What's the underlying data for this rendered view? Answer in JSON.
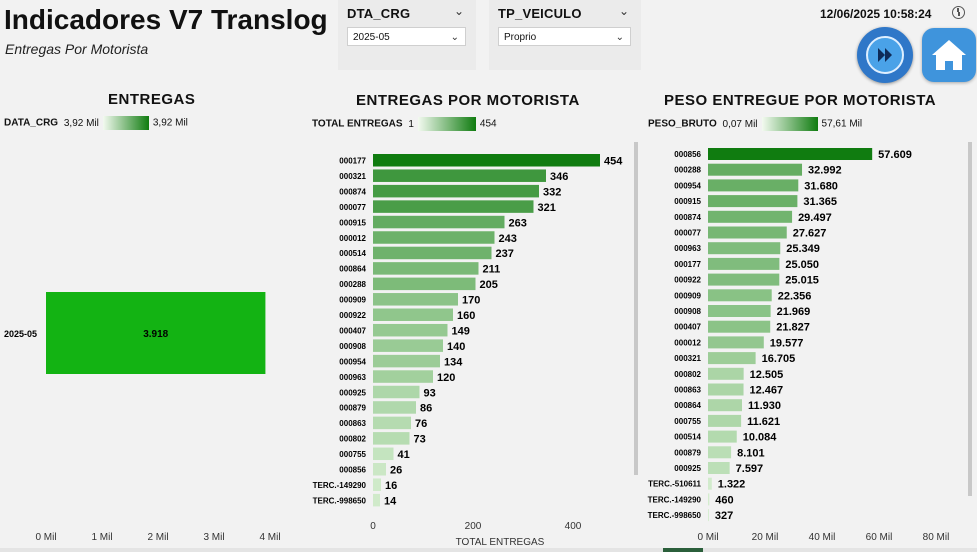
{
  "header": {
    "title": "Indicadores V7 Translog",
    "subtitle": "Entregas Por Motorista",
    "datetime": "12/06/2025 10:58:24"
  },
  "slicers": [
    {
      "label": "DTA_CRG",
      "value": "2025-05"
    },
    {
      "label": "TP_VEICULO",
      "value": "Proprio"
    }
  ],
  "icons": {
    "next": "fast-forward-icon",
    "home": "home-icon",
    "clock": "clock-icon"
  },
  "colors": {
    "dark_green": "#107c10",
    "light_green": "#c8e6c0",
    "bright_green": "#13b313"
  },
  "panels": {
    "entregas": {
      "title": "ENTREGAS",
      "legend": {
        "field": "DATA_CRG",
        "min": "3,92 Mil",
        "max": "3,92 Mil"
      }
    },
    "motorista": {
      "title": "ENTREGAS POR MOTORISTA",
      "legend": {
        "field": "TOTAL ENTREGAS",
        "min": "1",
        "max": "454"
      }
    },
    "peso": {
      "title": "PESO ENTREGUE POR MOTORISTA",
      "legend": {
        "field": "PESO_BRUTO",
        "min": "0,07 Mil",
        "max": "57,61 Mil"
      }
    }
  },
  "chart_data": [
    {
      "type": "bar",
      "orientation": "horizontal",
      "title": "ENTREGAS",
      "categories": [
        "2025-05"
      ],
      "values": [
        3918
      ],
      "data_labels": [
        "3.918"
      ],
      "xlim": [
        0,
        4000
      ],
      "x_ticks": [
        "0 Mil",
        "1 Mil",
        "2 Mil",
        "3 Mil",
        "4 Mil"
      ],
      "x_tick_values": [
        0,
        1000,
        2000,
        3000,
        4000
      ]
    },
    {
      "type": "bar",
      "orientation": "horizontal",
      "title": "ENTREGAS POR MOTORISTA",
      "xlabel": "TOTAL ENTREGAS",
      "categories": [
        "000177",
        "000321",
        "000874",
        "000077",
        "000915",
        "000012",
        "000514",
        "000864",
        "000288",
        "000909",
        "000922",
        "000407",
        "000908",
        "000954",
        "000963",
        "000925",
        "000879",
        "000863",
        "000802",
        "000755",
        "000856",
        "TERC.-149290",
        "TERC.-998650"
      ],
      "values": [
        454,
        346,
        332,
        321,
        263,
        243,
        237,
        211,
        205,
        170,
        160,
        149,
        140,
        134,
        120,
        93,
        86,
        76,
        73,
        41,
        26,
        16,
        14
      ],
      "xlim": [
        0,
        500
      ],
      "x_ticks": [
        "0",
        "200",
        "400"
      ],
      "x_tick_values": [
        0,
        200,
        400
      ]
    },
    {
      "type": "bar",
      "orientation": "horizontal",
      "title": "PESO ENTREGUE POR MOTORISTA",
      "categories": [
        "000856",
        "000288",
        "000954",
        "000915",
        "000874",
        "000077",
        "000963",
        "000177",
        "000922",
        "000909",
        "000908",
        "000407",
        "000012",
        "000321",
        "000802",
        "000863",
        "000864",
        "000755",
        "000514",
        "000879",
        "000925",
        "TERC.-510611",
        "TERC.-149290",
        "TERC.-998650"
      ],
      "values": [
        57609,
        32992,
        31680,
        31365,
        29497,
        27627,
        25349,
        25050,
        25015,
        22356,
        21969,
        21827,
        19577,
        16705,
        12505,
        12467,
        11930,
        11621,
        10084,
        8101,
        7597,
        1322,
        460,
        327
      ],
      "data_labels": [
        "57.609",
        "32.992",
        "31.680",
        "31.365",
        "29.497",
        "27.627",
        "25.349",
        "25.050",
        "25.015",
        "22.356",
        "21.969",
        "21.827",
        "19.577",
        "16.705",
        "12.505",
        "12.467",
        "11.930",
        "11.621",
        "10.084",
        "8.101",
        "7.597",
        "1.322",
        "460",
        "327"
      ],
      "xlim": [
        0,
        80000
      ],
      "x_ticks": [
        "0 Mil",
        "20 Mil",
        "40 Mil",
        "60 Mil",
        "80 Mil"
      ],
      "x_tick_values": [
        0,
        20000,
        40000,
        60000,
        80000
      ]
    }
  ]
}
